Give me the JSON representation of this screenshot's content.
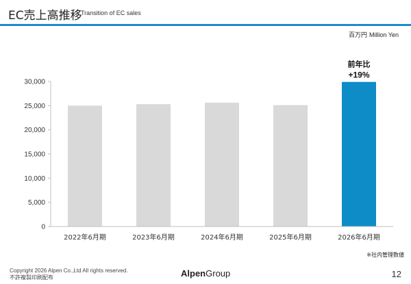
{
  "header": {
    "title": "EC売上高推移",
    "subtitle": "Transition of EC sales"
  },
  "unit_label_jp": "百万円",
  "unit_label_en": "Million Yen",
  "note": "※社内管理数値",
  "footer": {
    "copyright": "Copyright 2026 Alpen Co.,Ltd All rights reserved.",
    "confidential": "不許複製印刷配布",
    "logo_bold": "Alpen",
    "logo_rest": "Group",
    "page_number": "12"
  },
  "colors": {
    "accent": "#1a8ccd",
    "bar_default": "#d9d9d9",
    "bar_highlight": "#0e8cc8"
  },
  "chart_data": {
    "type": "bar",
    "categories": [
      "2022年6月期",
      "2023年6月期",
      "2024年6月期",
      "2025年6月期",
      "2026年6月期"
    ],
    "values": [
      25000,
      25300,
      25600,
      25100,
      29900
    ],
    "ylim": [
      0,
      30000
    ],
    "yticks": [
      0,
      5000,
      10000,
      15000,
      20000,
      25000,
      30000
    ],
    "ytick_labels": [
      "0",
      "5,000",
      "10,000",
      "15,000",
      "20,000",
      "25,000",
      "30,000"
    ],
    "highlight_index": 4,
    "annotation": {
      "line1": "前年比",
      "line2": "+19%"
    },
    "grid": false
  }
}
